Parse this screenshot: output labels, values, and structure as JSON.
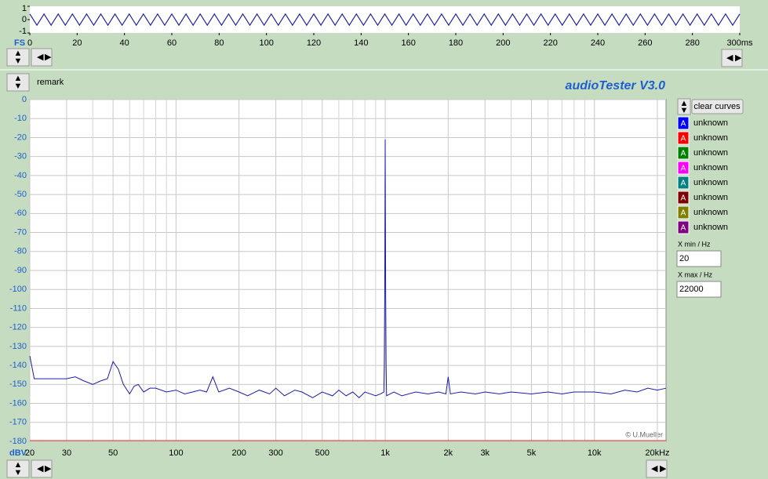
{
  "time_plot": {
    "y_unit": "FS",
    "xlim": [
      0,
      300
    ],
    "ylim": [
      -1,
      1
    ],
    "yticks": [
      1,
      0,
      -1
    ],
    "xticks": [
      0,
      20,
      40,
      60,
      80,
      100,
      120,
      140,
      160,
      180,
      200,
      220,
      240,
      260,
      280,
      {
        "value": 300,
        "label": "300ms"
      }
    ],
    "color": "#1c1ca8",
    "x": [
      0,
      3,
      6,
      9,
      12,
      15,
      18,
      21,
      24,
      27,
      30,
      33,
      36,
      39,
      42,
      45,
      48,
      51,
      54,
      57,
      60,
      63,
      66,
      69,
      72,
      75,
      78,
      81,
      84,
      87,
      90,
      93,
      96,
      99,
      102,
      105,
      108,
      111,
      114,
      117,
      120,
      123,
      126,
      129,
      132,
      135,
      138,
      141,
      144,
      147,
      150,
      153,
      156,
      159,
      162,
      165,
      168,
      171,
      174,
      177,
      180,
      183,
      186,
      189,
      192,
      195,
      198,
      201,
      204,
      207,
      210,
      213,
      216,
      219,
      222,
      225,
      228,
      231,
      234,
      237,
      240,
      243,
      246,
      249,
      252,
      255,
      258,
      261,
      264,
      267,
      270,
      273,
      276,
      279,
      282,
      285,
      288,
      291,
      294,
      297,
      300
    ],
    "values": [
      0.42,
      -0.42,
      0.42,
      -0.42,
      0.42,
      -0.42,
      0.42,
      -0.42,
      0.42,
      -0.42,
      0.42,
      -0.42,
      0.42,
      -0.42,
      0.42,
      -0.42,
      0.42,
      -0.42,
      0.42,
      -0.42,
      0.42,
      -0.42,
      0.42,
      -0.42,
      0.42,
      -0.42,
      0.42,
      -0.42,
      0.42,
      -0.42,
      0.42,
      -0.42,
      0.42,
      -0.42,
      0.42,
      -0.42,
      0.42,
      -0.42,
      0.42,
      -0.42,
      0.42,
      -0.42,
      0.42,
      -0.42,
      0.42,
      -0.42,
      0.42,
      -0.42,
      0.42,
      -0.42,
      0.42,
      -0.42,
      0.42,
      -0.42,
      0.42,
      -0.42,
      0.42,
      -0.42,
      0.42,
      -0.42,
      0.42,
      -0.42,
      0.42,
      -0.42,
      0.42,
      -0.42,
      0.42,
      -0.42,
      0.42,
      -0.42,
      0.42,
      -0.42,
      0.42,
      -0.42,
      0.42,
      -0.42,
      0.42,
      -0.42,
      0.42,
      -0.42,
      0.42,
      -0.42,
      0.42,
      -0.42,
      0.42,
      -0.42,
      0.42,
      -0.42,
      0.42,
      -0.42,
      0.42,
      -0.42,
      0.42,
      -0.42,
      0.42,
      -0.42,
      0.42,
      -0.42,
      0.42,
      -0.42,
      0.42
    ]
  },
  "remark": "remark",
  "app_title": "audioTester  V3.0",
  "spectrum": {
    "y_unit": "dBV",
    "log_x": true,
    "xlim": [
      20,
      22000
    ],
    "ylim": [
      -180,
      0
    ],
    "yticks": [
      0,
      -10,
      -20,
      -30,
      -40,
      -50,
      -60,
      -70,
      -80,
      -90,
      -100,
      -110,
      -120,
      -130,
      -140,
      -150,
      -160,
      -170,
      -180
    ],
    "xticks": [
      20,
      30,
      50,
      100,
      200,
      300,
      500,
      {
        "value": 1000,
        "label": "1k"
      },
      {
        "value": 2000,
        "label": "2k"
      },
      {
        "value": 3000,
        "label": "3k"
      },
      {
        "value": 5000,
        "label": "5k"
      },
      {
        "value": 10000,
        "label": "10k"
      },
      {
        "value": 20000,
        "label": "20kHz"
      }
    ],
    "x_minor_grid": [
      40,
      60,
      70,
      80,
      90,
      400,
      600,
      700,
      800,
      900,
      4000,
      6000,
      7000,
      8000,
      9000
    ],
    "copyright": "© U.Mueller",
    "series": [
      {
        "name": "unknown",
        "color": "#1c1ca8",
        "x": [
          20,
          21,
          25,
          30,
          33,
          36,
          40,
          44,
          47,
          50,
          53,
          56,
          60,
          63,
          66,
          70,
          75,
          80,
          90,
          100,
          110,
          120,
          130,
          140,
          150,
          160,
          180,
          200,
          220,
          250,
          280,
          300,
          330,
          370,
          400,
          450,
          500,
          560,
          600,
          650,
          700,
          750,
          800,
          850,
          900,
          950,
          985,
          990,
          995,
          1000,
          1005,
          1010,
          1015,
          1100,
          1200,
          1400,
          1600,
          1800,
          1950,
          2000,
          2050,
          2300,
          2700,
          3000,
          3500,
          4000,
          5000,
          6000,
          7000,
          8000,
          10000,
          12000,
          14000,
          16000,
          18000,
          20000,
          22000
        ],
        "values": [
          -135,
          -147,
          -147,
          -147,
          -146,
          -148,
          -150,
          -148,
          -147,
          -138,
          -142,
          -150,
          -155,
          -151,
          -150,
          -154,
          -152,
          -152,
          -154,
          -153,
          -155,
          -154,
          -153,
          -154,
          -146,
          -154,
          -152,
          -154,
          -156,
          -153,
          -155,
          -152,
          -156,
          -153,
          -154,
          -157,
          -154,
          -156,
          -153,
          -156,
          -154,
          -157,
          -154,
          -155,
          -156,
          -155,
          -154,
          -140,
          -100,
          -21,
          -100,
          -140,
          -156,
          -154,
          -156,
          -154,
          -155,
          -154,
          -155,
          -146,
          -155,
          -154,
          -155,
          -154,
          -155,
          -154,
          -155,
          -154,
          -155,
          -154,
          -154,
          -155,
          -153,
          -154,
          -152,
          -153,
          -152
        ]
      }
    ]
  },
  "clear_button": "clear curves",
  "curves": [
    {
      "label": "A",
      "name": "unknown",
      "color": "#0000ff"
    },
    {
      "label": "A",
      "name": "unknown",
      "color": "#ff0000"
    },
    {
      "label": "A",
      "name": "unknown",
      "color": "#008000"
    },
    {
      "label": "A",
      "name": "unknown",
      "color": "#ff00ff"
    },
    {
      "label": "A",
      "name": "unknown",
      "color": "#008080"
    },
    {
      "label": "A",
      "name": "unknown",
      "color": "#800000"
    },
    {
      "label": "A",
      "name": "unknown",
      "color": "#808000"
    },
    {
      "label": "A",
      "name": "unknown",
      "color": "#800080"
    }
  ],
  "x_min": {
    "label": "X min / Hz",
    "value": "20"
  },
  "x_max": {
    "label": "X max / Hz",
    "value": "22000"
  }
}
